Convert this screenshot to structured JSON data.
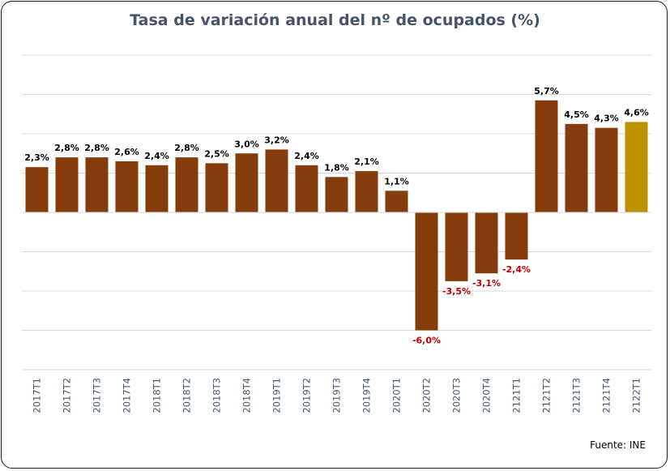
{
  "chart_data": {
    "type": "bar",
    "title": "Tasa de variación anual del nº de ocupados  (%)",
    "source": "Fuente: INE",
    "xlabel": "",
    "ylabel": "",
    "ylim": [
      -8,
      8
    ],
    "grid": true,
    "categories": [
      "2017T1",
      "2017T2",
      "2017T3",
      "2017T4",
      "2018T1",
      "2018T2",
      "2018T3",
      "2018T4",
      "2019T1",
      "2019T2",
      "2019T3",
      "2019T4",
      "2020T1",
      "2020T2",
      "2020T3",
      "2020T4",
      "2121T1",
      "2121T2",
      "2121T3",
      "2121T4",
      "2122T1"
    ],
    "values": [
      2.3,
      2.8,
      2.8,
      2.6,
      2.4,
      2.8,
      2.5,
      3.0,
      3.2,
      2.4,
      1.8,
      2.1,
      1.1,
      -6.0,
      -3.5,
      -3.1,
      -2.4,
      5.7,
      4.5,
      4.3,
      4.6
    ],
    "labels": [
      "2,3%",
      "2,8%",
      "2,8%",
      "2,6%",
      "2,4%",
      "2,8%",
      "2,5%",
      "3,0%",
      "3,2%",
      "2,4%",
      "1,8%",
      "2,1%",
      "1,1%",
      "-6,0%",
      "-3,5%",
      "-3,1%",
      "-2,4%",
      "5,7%",
      "4,5%",
      "4,3%",
      "4,6%"
    ],
    "highlight_index": 20,
    "colors": {
      "bar": "#843c0c",
      "highlight": "#bf9000",
      "positive_label": "#000000",
      "negative_label": "#c00000",
      "grid": "#d9d9d9",
      "title": "#44546a"
    }
  }
}
